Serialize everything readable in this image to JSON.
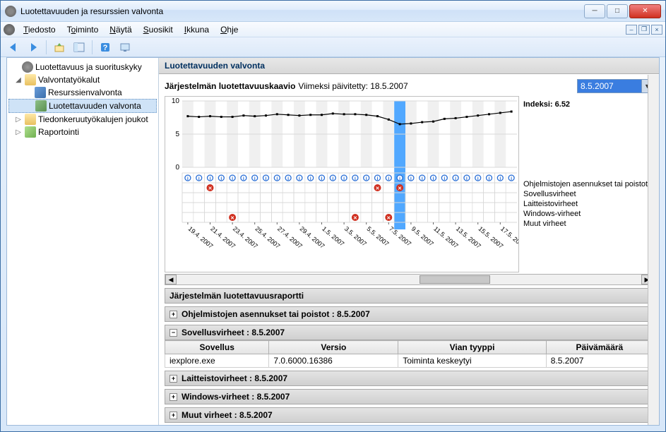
{
  "window": {
    "title": "Luotettavuuden ja resurssien valvonta"
  },
  "menu": {
    "items": [
      "Tiedosto",
      "Toiminto",
      "Näytä",
      "Suosikit",
      "Ikkuna",
      "Ohje"
    ]
  },
  "tree": {
    "root": "Luotettavuus ja suorituskyky",
    "n1": "Valvontatyökalut",
    "n1a": "Resurssienvalvonta",
    "n1b": "Luotettavuuden valvonta",
    "n2": "Tiedonkeruutyökalujen joukot",
    "n3": "Raportointi"
  },
  "content": {
    "title": "Luotettavuuden valvonta",
    "chartCaption": "Järjestelmän luotettavuuskaavio",
    "updatedLabel": "Viimeksi päivitetty: 18.5.2007",
    "selectedDate": "8.5.2007",
    "indexLabel": "Indeksi:",
    "indexValue": "6.52"
  },
  "chart": {
    "ymin": 0,
    "ymax": 10,
    "yticks": [
      0,
      5,
      10
    ],
    "dates": [
      "19.4. 2007",
      "21.4. 2007",
      "23.4. 2007",
      "25.4. 2007",
      "27.4. 2007",
      "29.4. 2007",
      "1.5. 2007",
      "3.5. 2007",
      "5.5. 2007",
      "7.5. 2007",
      "9.5. 2007",
      "11.5. 2007",
      "13.5. 2007",
      "15.5. 2007",
      "17.5. 2007"
    ],
    "values": [
      7.7,
      7.6,
      7.7,
      7.6,
      7.6,
      7.8,
      7.7,
      7.8,
      8.0,
      7.9,
      7.8,
      7.9,
      7.9,
      8.1,
      8.0,
      8.0,
      7.9,
      7.7,
      7.2,
      6.5,
      6.6,
      6.8,
      6.9,
      7.3,
      7.4,
      7.6,
      7.8,
      8.0,
      8.2,
      8.4
    ],
    "selectedIndex": 19,
    "rowLabels": [
      "Ohjelmistojen asennukset tai poistot",
      "Sovellusvirheet",
      "Laitteistovirheet",
      "Windows-virheet",
      "Muut virheet"
    ],
    "infoCols": [
      0,
      1,
      2,
      3,
      4,
      5,
      6,
      7,
      8,
      9,
      10,
      11,
      12,
      13,
      14,
      15,
      16,
      17,
      18,
      19,
      20,
      21,
      22,
      23,
      24,
      25,
      26,
      27,
      28,
      29
    ],
    "errRow1Cols": [
      2,
      17,
      19
    ],
    "errRow4Cols": [
      4,
      15,
      18
    ],
    "lineColor": "#000000",
    "markerColor": "#000000",
    "gridColor": "#d8d8d8",
    "bandBg": "#f0f0f0",
    "selColor": "#3399ff",
    "infoIconColor": "#2a6fd6",
    "errIconColor": "#d03020"
  },
  "report": {
    "header": "Järjestelmän luotettavuusraportti",
    "s1": "Ohjelmistojen asennukset tai poistot : 8.5.2007",
    "s2": "Sovellusvirheet : 8.5.2007",
    "s3": "Laitteistovirheet : 8.5.2007",
    "s4": "Windows-virheet : 8.5.2007",
    "s5": "Muut virheet : 8.5.2007",
    "cols": {
      "app": "Sovellus",
      "ver": "Versio",
      "type": "Vian tyyppi",
      "date": "Päivämäärä"
    },
    "rows": [
      {
        "app": "iexplore.exe",
        "ver": "7.0.6000.16386",
        "type": "Toiminta keskeytyi",
        "date": "8.5.2007"
      }
    ]
  }
}
